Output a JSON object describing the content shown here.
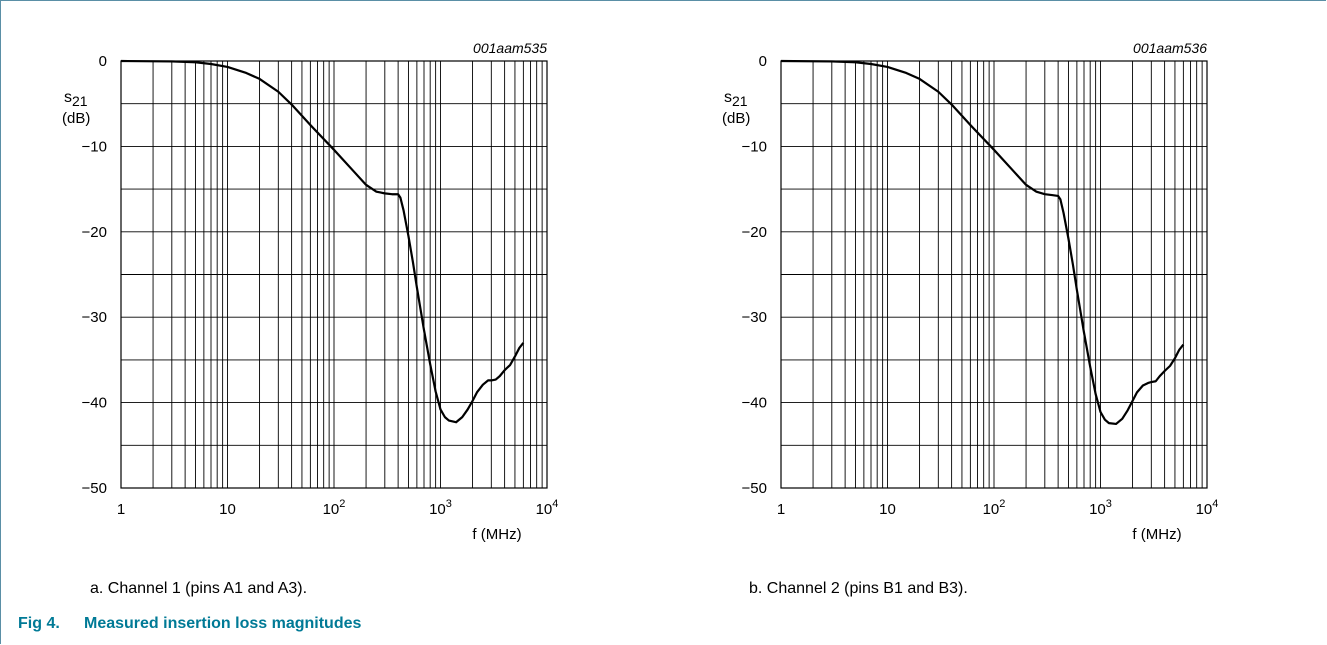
{
  "figure": {
    "number": "Fig 4.",
    "title": "Measured insertion loss magnitudes"
  },
  "colors": {
    "accent": "#007a96",
    "frame": "#5a8fa6",
    "curve": "#000000",
    "grid": "#000000"
  },
  "chart_data": [
    {
      "type": "line",
      "id_text": "001aam535",
      "caption": "a.  Channel 1 (pins A1 and A3).",
      "ylabel_main": "s",
      "ylabel_sub": "21",
      "ylabel_unit": "(dB)",
      "xlabel": "f (MHz)",
      "xscale": "log",
      "xlim": [
        1,
        10000
      ],
      "ylim": [
        -50,
        0
      ],
      "grid": true,
      "yticks": [
        {
          "value": 0,
          "label": "0"
        },
        {
          "value": -10,
          "label": "−10"
        },
        {
          "value": -20,
          "label": "−20"
        },
        {
          "value": -30,
          "label": "−30"
        },
        {
          "value": -40,
          "label": "−40"
        },
        {
          "value": -50,
          "label": "−50"
        }
      ],
      "xticks": [
        {
          "value": 1,
          "label": "1",
          "sup": ""
        },
        {
          "value": 10,
          "label": "10",
          "sup": ""
        },
        {
          "value": 100,
          "label": "10",
          "sup": "2"
        },
        {
          "value": 1000,
          "label": "10",
          "sup": "3"
        },
        {
          "value": 10000,
          "label": "10",
          "sup": "4"
        }
      ],
      "series": [
        {
          "x": [
            1,
            3,
            5,
            7,
            10,
            15,
            20,
            30,
            40,
            60,
            100,
            150,
            200,
            250,
            300,
            350,
            400,
            420,
            450,
            500,
            550,
            600,
            700,
            800,
            900,
            1000,
            1100,
            1200,
            1400,
            1600,
            1800,
            2000,
            2200,
            2500,
            2800,
            3000,
            3300,
            3600,
            4000,
            4500,
            5000,
            5500,
            6000
          ],
          "y": [
            0,
            -0.05,
            -0.15,
            -0.35,
            -0.7,
            -1.4,
            -2.1,
            -3.6,
            -5.1,
            -7.5,
            -10.4,
            -12.8,
            -14.5,
            -15.3,
            -15.5,
            -15.6,
            -15.6,
            -16,
            -17.5,
            -20.5,
            -23.5,
            -26.5,
            -31.5,
            -35.5,
            -38.7,
            -40.8,
            -41.7,
            -42.1,
            -42.3,
            -41.7,
            -40.8,
            -39.8,
            -38.8,
            -37.9,
            -37.4,
            -37.4,
            -37.3,
            -36.9,
            -36.2,
            -35.6,
            -34.6,
            -33.6,
            -33
          ]
        }
      ]
    },
    {
      "type": "line",
      "id_text": "001aam536",
      "caption": "b.  Channel 2 (pins B1 and B3).",
      "ylabel_main": "s",
      "ylabel_sub": "21",
      "ylabel_unit": "(dB)",
      "xlabel": "f (MHz)",
      "xscale": "log",
      "xlim": [
        1,
        10000
      ],
      "ylim": [
        -50,
        0
      ],
      "grid": true,
      "yticks": [
        {
          "value": 0,
          "label": "0"
        },
        {
          "value": -10,
          "label": "−10"
        },
        {
          "value": -20,
          "label": "−20"
        },
        {
          "value": -30,
          "label": "−30"
        },
        {
          "value": -40,
          "label": "−40"
        },
        {
          "value": -50,
          "label": "−50"
        }
      ],
      "xticks": [
        {
          "value": 1,
          "label": "1",
          "sup": ""
        },
        {
          "value": 10,
          "label": "10",
          "sup": ""
        },
        {
          "value": 100,
          "label": "10",
          "sup": "2"
        },
        {
          "value": 1000,
          "label": "10",
          "sup": "3"
        },
        {
          "value": 10000,
          "label": "10",
          "sup": "4"
        }
      ],
      "series": [
        {
          "x": [
            1,
            3,
            5,
            7,
            10,
            15,
            20,
            30,
            40,
            60,
            100,
            150,
            200,
            250,
            300,
            350,
            400,
            420,
            450,
            500,
            550,
            600,
            700,
            800,
            900,
            1000,
            1100,
            1200,
            1400,
            1600,
            1800,
            2000,
            2200,
            2500,
            2800,
            3000,
            3300,
            3600,
            4000,
            4500,
            5000,
            5500,
            6000
          ],
          "y": [
            0,
            -0.05,
            -0.15,
            -0.35,
            -0.7,
            -1.4,
            -2.1,
            -3.6,
            -5.1,
            -7.5,
            -10.4,
            -12.8,
            -14.5,
            -15.3,
            -15.6,
            -15.7,
            -15.8,
            -16.2,
            -17.8,
            -20.8,
            -23.8,
            -26.8,
            -31.8,
            -35.8,
            -39,
            -41.1,
            -42,
            -42.4,
            -42.5,
            -41.9,
            -40.9,
            -39.8,
            -38.8,
            -38,
            -37.7,
            -37.6,
            -37.5,
            -36.9,
            -36.3,
            -35.7,
            -34.8,
            -33.8,
            -33.2
          ]
        }
      ]
    }
  ]
}
